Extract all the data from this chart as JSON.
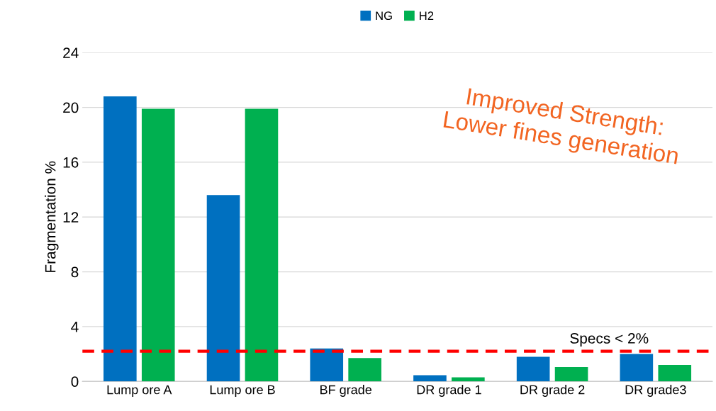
{
  "chart_data": {
    "type": "bar",
    "ylabel": "Fragmentation %",
    "categories": [
      "Lump ore A",
      "Lump ore B",
      "BF grade",
      "DR grade 1",
      "DR grade 2",
      "DR grade3"
    ],
    "series": [
      {
        "name": "NG",
        "color": "#0070c0",
        "values": [
          20.8,
          13.6,
          2.4,
          0.45,
          1.8,
          2.0
        ]
      },
      {
        "name": "H2",
        "color": "#00b050",
        "values": [
          19.9,
          19.9,
          1.7,
          0.3,
          1.05,
          1.2
        ]
      }
    ],
    "ylim": [
      0,
      24
    ],
    "yticks": [
      0,
      4,
      8,
      12,
      16,
      20,
      24
    ],
    "grid": "y",
    "legend": "top",
    "ref_lines": [
      {
        "axis": "y",
        "value": 2.2,
        "label": "Specs < 2%",
        "color": "#ff0000",
        "line_style": "dashed"
      }
    ],
    "annotations": [
      "Improved Strength:\nLower fines generation"
    ]
  }
}
